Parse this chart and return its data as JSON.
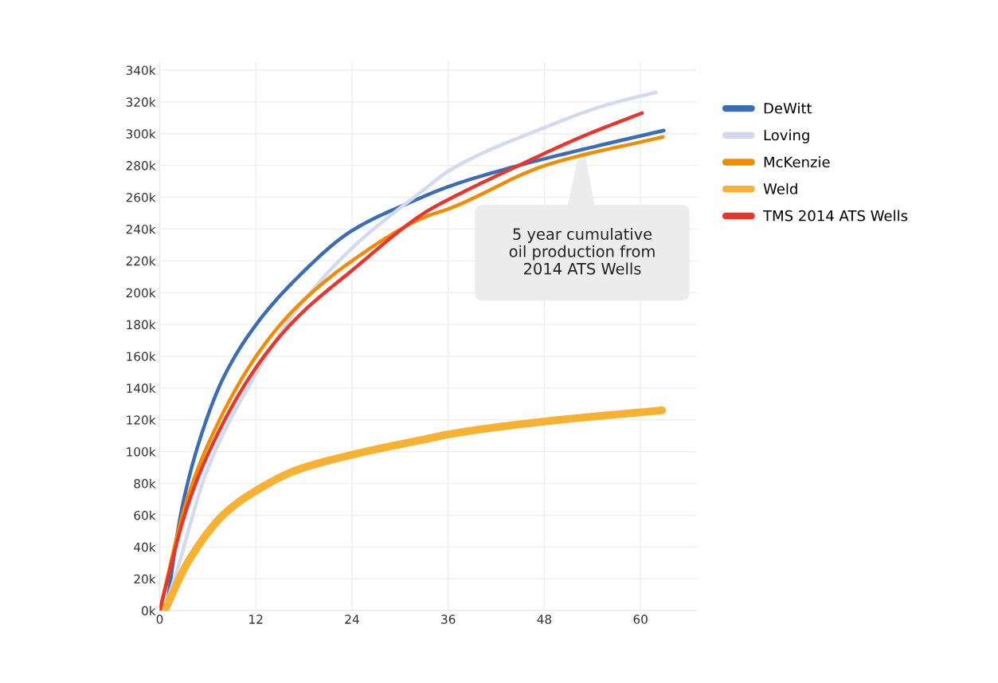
{
  "chart_data": {
    "type": "line",
    "series": [
      {
        "name": "DeWitt",
        "color": "#3a6db5",
        "x": [
          0.8,
          2.8,
          5.9,
          8.1,
          11.9,
          16.9,
          24,
          31.8,
          36.2,
          44.8,
          52.7,
          62.9
        ],
        "values": [
          0,
          65000,
          121000,
          148000,
          179000,
          208000,
          239000,
          258000,
          267000,
          280000,
          290000,
          302000
        ]
      },
      {
        "name": "Loving",
        "color": "#d3d9ee",
        "x": [
          0.5,
          1.9,
          5.9,
          11.9,
          16.9,
          24,
          33.3,
          36.2,
          48.1,
          55.7,
          61.9
        ],
        "values": [
          0,
          21000,
          88000,
          148000,
          188000,
          228000,
          266000,
          277000,
          304000,
          318000,
          326000
        ]
      },
      {
        "name": "McKenzie",
        "color": "#f08c00",
        "x": [
          0,
          3.3,
          5.9,
          11.9,
          16.9,
          24,
          33.3,
          36.2,
          48.1,
          62.8
        ],
        "values": [
          0,
          68000,
          103000,
          159000,
          190000,
          220000,
          248000,
          253000,
          280000,
          298000
        ]
      },
      {
        "name": "Weld",
        "color": "#f7b133",
        "x": [
          0.6,
          3.7,
          8.1,
          11.9,
          16.9,
          24,
          33.3,
          36.2,
          48.1,
          62.7
        ],
        "values": [
          0,
          32000,
          61000,
          75000,
          88000,
          98000,
          108000,
          111000,
          119000,
          126000
        ]
      },
      {
        "name": "TMS 2014 ATS Wells",
        "color": "#e8352e",
        "x": [
          0,
          3.3,
          5.9,
          11.9,
          16.9,
          24,
          33.3,
          36.2,
          44.8,
          53.1,
          60.2
        ],
        "values": [
          0,
          63000,
          97000,
          152000,
          183000,
          214000,
          251000,
          259000,
          280000,
          299000,
          313000
        ]
      }
    ],
    "xlim": [
      0,
      67
    ],
    "xticks": [
      0,
      12,
      24,
      36,
      48,
      60
    ],
    "ylim": [
      0,
      345000
    ],
    "yticks": [
      {
        "value": 0,
        "label": "0k"
      },
      {
        "value": 20000,
        "label": "20k"
      },
      {
        "value": 40000,
        "label": "40k"
      },
      {
        "value": 60000,
        "label": "60k"
      },
      {
        "value": 80000,
        "label": "80k"
      },
      {
        "value": 100000,
        "label": "100k"
      },
      {
        "value": 120000,
        "label": "120k"
      },
      {
        "value": 140000,
        "label": "140k"
      },
      {
        "value": 160000,
        "label": "160k"
      },
      {
        "value": 180000,
        "label": "180k"
      },
      {
        "value": 200000,
        "label": "200k"
      },
      {
        "value": 220000,
        "label": "220k"
      },
      {
        "value": 240000,
        "label": "240k"
      },
      {
        "value": 260000,
        "label": "260k"
      },
      {
        "value": 280000,
        "label": "280k"
      },
      {
        "value": 300000,
        "label": "300k"
      },
      {
        "value": 320000,
        "label": "320k"
      },
      {
        "value": 340000,
        "label": "340k"
      }
    ],
    "annotations": [
      "5 year cumulative\noil production from\n2014 ATS Wells"
    ],
    "grid": true,
    "legend": "right",
    "marker": "none",
    "line_style": "solid"
  }
}
